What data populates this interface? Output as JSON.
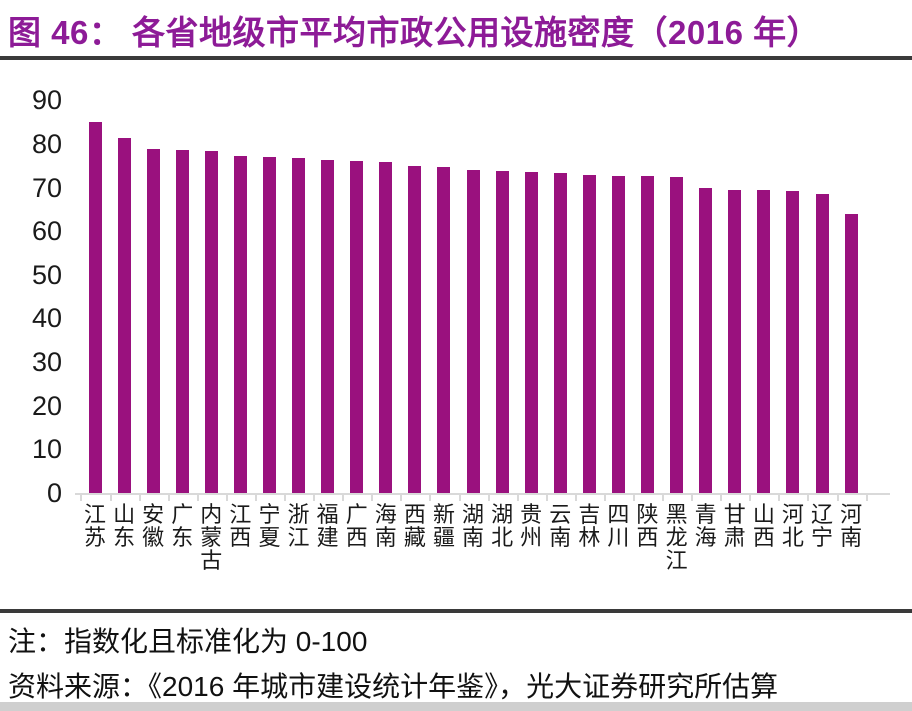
{
  "title": "图 46：  各省地级市平均市政公用设施密度（2016 年）",
  "notes": {
    "note": "注：指数化且标准化为 0-100",
    "source": "资料来源：《2016 年城市建设统计年鉴》，光大证券研究所估算"
  },
  "colors": {
    "bar": "#9A117E",
    "title": "#8D1B97",
    "axis_line": "#D9D9D9",
    "rule": "#3A3A3A",
    "tick_text": "#1A1A1A"
  },
  "chart_data": {
    "type": "bar",
    "title": "各省地级市平均市政公用设施密度（2016 年）",
    "categories": [
      "江苏",
      "山东",
      "安徽",
      "广东",
      "内蒙古",
      "江西",
      "宁夏",
      "浙江",
      "福建",
      "广西",
      "海南",
      "西藏",
      "新疆",
      "湖南",
      "湖北",
      "贵州",
      "云南",
      "吉林",
      "四川",
      "陕西",
      "黑龙江",
      "青海",
      "甘肃",
      "山西",
      "河北",
      "辽宁",
      "河南"
    ],
    "values": [
      85,
      81.3,
      78.8,
      78.5,
      78.3,
      77.2,
      77.1,
      76.7,
      76.3,
      76,
      75.8,
      74.9,
      74.6,
      74.1,
      73.8,
      73.6,
      73.3,
      72.8,
      72.7,
      72.7,
      72.4,
      70,
      69.5,
      69.4,
      69.1,
      68.5,
      63.9
    ],
    "xlabel": "",
    "ylabel": "",
    "ylim": [
      0,
      90
    ],
    "yticks": [
      0,
      10,
      20,
      30,
      40,
      50,
      60,
      70,
      80,
      90
    ],
    "grid": false,
    "legend": "none",
    "bar_color": "#9A117E"
  }
}
